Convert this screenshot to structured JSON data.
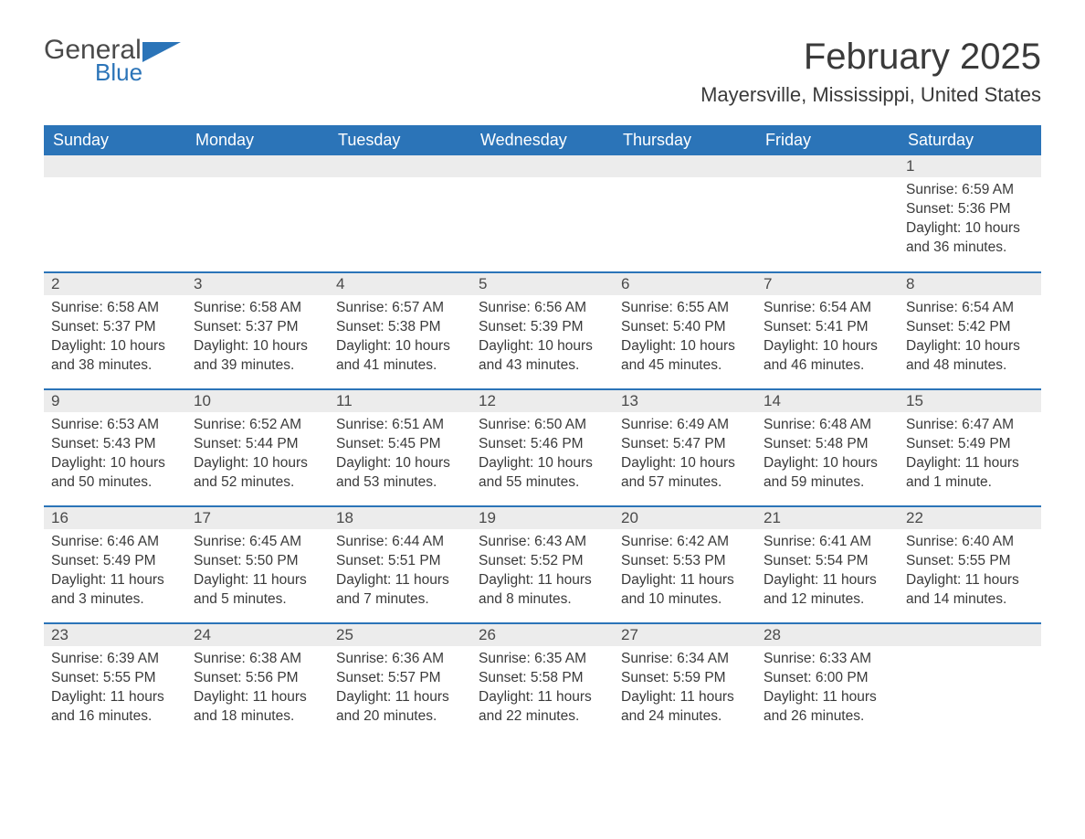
{
  "brand": {
    "word1": "General",
    "word2": "Blue",
    "flag_color": "#2b74b8"
  },
  "title": "February 2025",
  "location": "Mayersville, Mississippi, United States",
  "colors": {
    "header_bg": "#2b74b8",
    "header_text": "#ffffff",
    "daynum_bg": "#ececec",
    "text": "#3a3a3a",
    "rule": "#2b74b8"
  },
  "weekdays": [
    "Sunday",
    "Monday",
    "Tuesday",
    "Wednesday",
    "Thursday",
    "Friday",
    "Saturday"
  ],
  "weeks": [
    [
      null,
      null,
      null,
      null,
      null,
      null,
      {
        "n": "1",
        "sr": "Sunrise: 6:59 AM",
        "ss": "Sunset: 5:36 PM",
        "dl": "Daylight: 10 hours and 36 minutes."
      }
    ],
    [
      {
        "n": "2",
        "sr": "Sunrise: 6:58 AM",
        "ss": "Sunset: 5:37 PM",
        "dl": "Daylight: 10 hours and 38 minutes."
      },
      {
        "n": "3",
        "sr": "Sunrise: 6:58 AM",
        "ss": "Sunset: 5:37 PM",
        "dl": "Daylight: 10 hours and 39 minutes."
      },
      {
        "n": "4",
        "sr": "Sunrise: 6:57 AM",
        "ss": "Sunset: 5:38 PM",
        "dl": "Daylight: 10 hours and 41 minutes."
      },
      {
        "n": "5",
        "sr": "Sunrise: 6:56 AM",
        "ss": "Sunset: 5:39 PM",
        "dl": "Daylight: 10 hours and 43 minutes."
      },
      {
        "n": "6",
        "sr": "Sunrise: 6:55 AM",
        "ss": "Sunset: 5:40 PM",
        "dl": "Daylight: 10 hours and 45 minutes."
      },
      {
        "n": "7",
        "sr": "Sunrise: 6:54 AM",
        "ss": "Sunset: 5:41 PM",
        "dl": "Daylight: 10 hours and 46 minutes."
      },
      {
        "n": "8",
        "sr": "Sunrise: 6:54 AM",
        "ss": "Sunset: 5:42 PM",
        "dl": "Daylight: 10 hours and 48 minutes."
      }
    ],
    [
      {
        "n": "9",
        "sr": "Sunrise: 6:53 AM",
        "ss": "Sunset: 5:43 PM",
        "dl": "Daylight: 10 hours and 50 minutes."
      },
      {
        "n": "10",
        "sr": "Sunrise: 6:52 AM",
        "ss": "Sunset: 5:44 PM",
        "dl": "Daylight: 10 hours and 52 minutes."
      },
      {
        "n": "11",
        "sr": "Sunrise: 6:51 AM",
        "ss": "Sunset: 5:45 PM",
        "dl": "Daylight: 10 hours and 53 minutes."
      },
      {
        "n": "12",
        "sr": "Sunrise: 6:50 AM",
        "ss": "Sunset: 5:46 PM",
        "dl": "Daylight: 10 hours and 55 minutes."
      },
      {
        "n": "13",
        "sr": "Sunrise: 6:49 AM",
        "ss": "Sunset: 5:47 PM",
        "dl": "Daylight: 10 hours and 57 minutes."
      },
      {
        "n": "14",
        "sr": "Sunrise: 6:48 AM",
        "ss": "Sunset: 5:48 PM",
        "dl": "Daylight: 10 hours and 59 minutes."
      },
      {
        "n": "15",
        "sr": "Sunrise: 6:47 AM",
        "ss": "Sunset: 5:49 PM",
        "dl": "Daylight: 11 hours and 1 minute."
      }
    ],
    [
      {
        "n": "16",
        "sr": "Sunrise: 6:46 AM",
        "ss": "Sunset: 5:49 PM",
        "dl": "Daylight: 11 hours and 3 minutes."
      },
      {
        "n": "17",
        "sr": "Sunrise: 6:45 AM",
        "ss": "Sunset: 5:50 PM",
        "dl": "Daylight: 11 hours and 5 minutes."
      },
      {
        "n": "18",
        "sr": "Sunrise: 6:44 AM",
        "ss": "Sunset: 5:51 PM",
        "dl": "Daylight: 11 hours and 7 minutes."
      },
      {
        "n": "19",
        "sr": "Sunrise: 6:43 AM",
        "ss": "Sunset: 5:52 PM",
        "dl": "Daylight: 11 hours and 8 minutes."
      },
      {
        "n": "20",
        "sr": "Sunrise: 6:42 AM",
        "ss": "Sunset: 5:53 PM",
        "dl": "Daylight: 11 hours and 10 minutes."
      },
      {
        "n": "21",
        "sr": "Sunrise: 6:41 AM",
        "ss": "Sunset: 5:54 PM",
        "dl": "Daylight: 11 hours and 12 minutes."
      },
      {
        "n": "22",
        "sr": "Sunrise: 6:40 AM",
        "ss": "Sunset: 5:55 PM",
        "dl": "Daylight: 11 hours and 14 minutes."
      }
    ],
    [
      {
        "n": "23",
        "sr": "Sunrise: 6:39 AM",
        "ss": "Sunset: 5:55 PM",
        "dl": "Daylight: 11 hours and 16 minutes."
      },
      {
        "n": "24",
        "sr": "Sunrise: 6:38 AM",
        "ss": "Sunset: 5:56 PM",
        "dl": "Daylight: 11 hours and 18 minutes."
      },
      {
        "n": "25",
        "sr": "Sunrise: 6:36 AM",
        "ss": "Sunset: 5:57 PM",
        "dl": "Daylight: 11 hours and 20 minutes."
      },
      {
        "n": "26",
        "sr": "Sunrise: 6:35 AM",
        "ss": "Sunset: 5:58 PM",
        "dl": "Daylight: 11 hours and 22 minutes."
      },
      {
        "n": "27",
        "sr": "Sunrise: 6:34 AM",
        "ss": "Sunset: 5:59 PM",
        "dl": "Daylight: 11 hours and 24 minutes."
      },
      {
        "n": "28",
        "sr": "Sunrise: 6:33 AM",
        "ss": "Sunset: 6:00 PM",
        "dl": "Daylight: 11 hours and 26 minutes."
      },
      null
    ]
  ]
}
